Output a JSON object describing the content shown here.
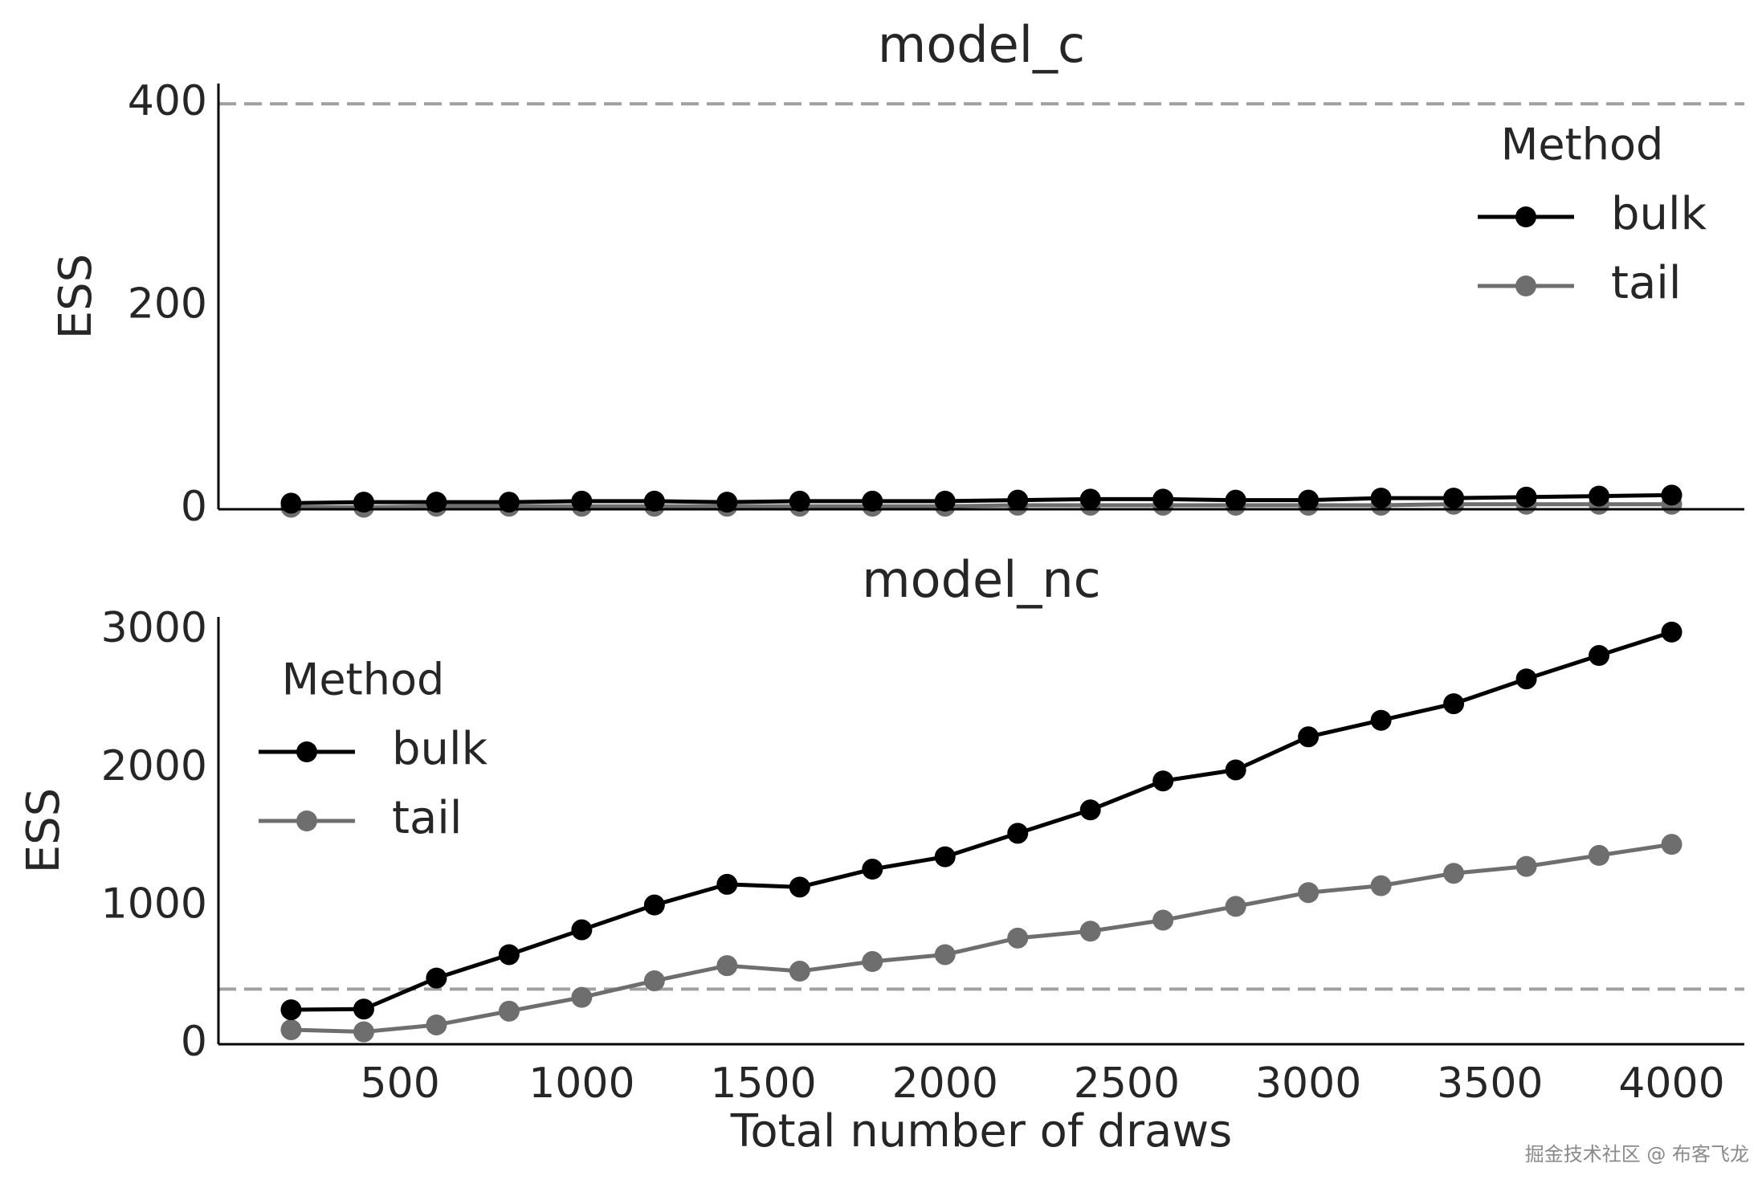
{
  "chart_data": [
    {
      "type": "line",
      "title": "model_c",
      "ylabel": "ESS",
      "xlabel": "",
      "xlim": [
        0,
        4200
      ],
      "ylim": [
        0,
        420
      ],
      "xticks": [
        500,
        1000,
        1500,
        2000,
        2500,
        3000,
        3500,
        4000
      ],
      "show_xticklabels": false,
      "yticks": [
        0,
        200,
        400
      ],
      "ytick_labels": [
        "0",
        "200",
        "400"
      ],
      "reference_line": 400,
      "legend": {
        "title": "Method",
        "placement": "upper right"
      },
      "grid": false,
      "x": [
        200,
        400,
        600,
        800,
        1000,
        1200,
        1400,
        1600,
        1800,
        2000,
        2200,
        2400,
        2600,
        2800,
        3000,
        3200,
        3400,
        3600,
        3800,
        4000
      ],
      "series": [
        {
          "name": "bulk",
          "color": "#000000",
          "values": [
            6,
            7,
            7,
            7,
            8,
            8,
            7,
            8,
            8,
            8,
            9,
            10,
            10,
            9,
            9,
            11,
            11,
            12,
            13,
            14
          ]
        },
        {
          "name": "tail",
          "color": "#6e6e6e",
          "values": [
            2,
            2,
            3,
            3,
            3,
            3,
            3,
            3,
            3,
            3,
            4,
            4,
            4,
            4,
            4,
            4,
            5,
            5,
            5,
            5
          ]
        }
      ]
    },
    {
      "type": "line",
      "title": "model_nc",
      "ylabel": "ESS",
      "xlabel": "Total number of draws",
      "xlim": [
        0,
        4200
      ],
      "ylim": [
        0,
        3100
      ],
      "xticks": [
        500,
        1000,
        1500,
        2000,
        2500,
        3000,
        3500,
        4000
      ],
      "xtick_labels": [
        "500",
        "1000",
        "1500",
        "2000",
        "2500",
        "3000",
        "3500",
        "4000"
      ],
      "show_xticklabels": true,
      "yticks": [
        0,
        1000,
        2000,
        3000
      ],
      "ytick_labels": [
        "0",
        "1000",
        "2000",
        "3000"
      ],
      "reference_line": 400,
      "legend": {
        "title": "Method",
        "placement": "upper left"
      },
      "grid": false,
      "x": [
        200,
        400,
        600,
        800,
        1000,
        1200,
        1400,
        1600,
        1800,
        2000,
        2200,
        2400,
        2600,
        2800,
        3000,
        3200,
        3400,
        3600,
        3800,
        4000
      ],
      "series": [
        {
          "name": "bulk",
          "color": "#000000",
          "values": [
            250,
            255,
            480,
            650,
            830,
            1010,
            1160,
            1140,
            1270,
            1360,
            1530,
            1700,
            1910,
            1990,
            2230,
            2350,
            2470,
            2650,
            2820,
            2990
          ]
        },
        {
          "name": "tail",
          "color": "#6e6e6e",
          "values": [
            105,
            90,
            140,
            240,
            340,
            460,
            570,
            530,
            600,
            650,
            770,
            820,
            900,
            1000,
            1100,
            1150,
            1240,
            1290,
            1370,
            1450
          ]
        }
      ]
    }
  ],
  "watermark": "掘金技术社区 @ 布客飞龙"
}
